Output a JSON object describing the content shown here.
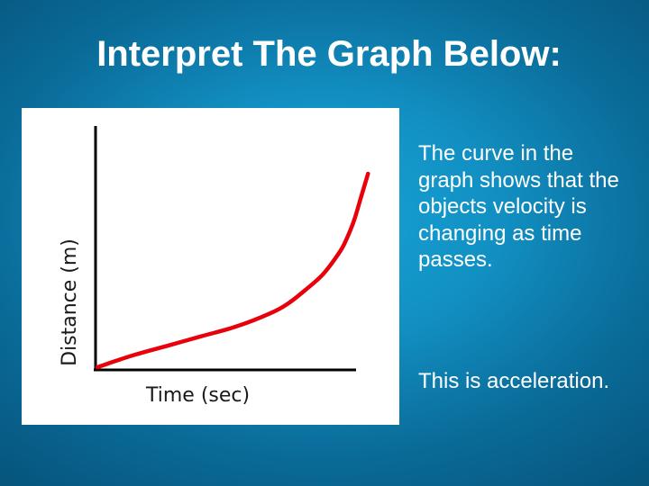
{
  "slide": {
    "title": "Interpret The Graph Below:",
    "paragraphs": [
      "The curve in the graph shows that the objects velocity is changing as time passes.",
      "This is acceleration."
    ]
  },
  "chart_data": {
    "type": "line",
    "title": "",
    "xlabel": "Time (sec)",
    "ylabel": "Distance (m)",
    "x_ticks": [],
    "y_ticks": [],
    "grid": false,
    "series": [
      {
        "color": "#e8000b",
        "x": [
          0,
          0.1,
          0.2,
          0.3,
          0.4,
          0.5,
          0.55,
          0.6,
          0.65,
          0.7,
          0.72,
          0.74,
          0.76,
          0.78
        ],
        "y": [
          0,
          0.06,
          0.11,
          0.16,
          0.21,
          0.28,
          0.33,
          0.4,
          0.48,
          0.6,
          0.67,
          0.76,
          0.88,
          1.0
        ]
      }
    ],
    "xlim": [
      0,
      1
    ],
    "ylim": [
      0,
      1
    ]
  }
}
